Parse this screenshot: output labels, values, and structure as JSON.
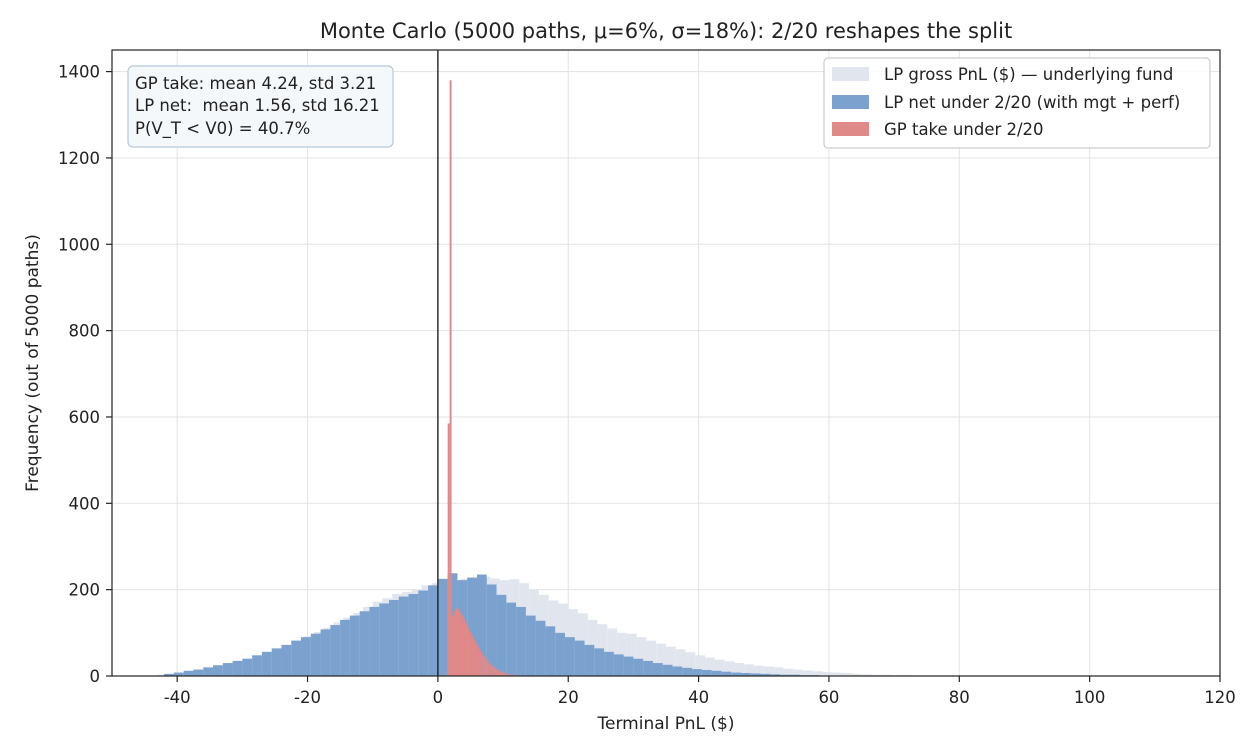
{
  "chart_data": {
    "type": "histogram",
    "title": "Monte Carlo (5000 paths, μ=6%, σ=18%): 2/20 reshapes the split",
    "xlabel": "Terminal PnL ($)",
    "ylabel": "Frequency (out of 5000 paths)",
    "xlim": [
      -50,
      120
    ],
    "ylim": [
      0,
      1450
    ],
    "xticks": [
      -40,
      -20,
      0,
      20,
      40,
      60,
      80,
      100,
      120
    ],
    "yticks": [
      0,
      200,
      400,
      600,
      800,
      1000,
      1200,
      1400
    ],
    "grid": true,
    "vline_x": 0,
    "legend_position": "top-right",
    "stats_box": {
      "lines": [
        "GP take: mean 4.24, std 3.21",
        "LP net:  mean 1.56, std 16.21",
        "P(V_T < V0) = 40.7%"
      ]
    },
    "series": [
      {
        "name": "LP gross PnL ($) — underlying fund",
        "color": "#e1e6ee",
        "bin_width": 1.5,
        "bins": [
          {
            "x": -43,
            "y": 3
          },
          {
            "x": -41.5,
            "y": 5
          },
          {
            "x": -40,
            "y": 8
          },
          {
            "x": -38.5,
            "y": 10
          },
          {
            "x": -37,
            "y": 14
          },
          {
            "x": -35.5,
            "y": 18
          },
          {
            "x": -34,
            "y": 22
          },
          {
            "x": -32.5,
            "y": 27
          },
          {
            "x": -31,
            "y": 33
          },
          {
            "x": -29.5,
            "y": 40
          },
          {
            "x": -28,
            "y": 47
          },
          {
            "x": -26.5,
            "y": 55
          },
          {
            "x": -25,
            "y": 63
          },
          {
            "x": -23.5,
            "y": 72
          },
          {
            "x": -22,
            "y": 82
          },
          {
            "x": -20.5,
            "y": 92
          },
          {
            "x": -19,
            "y": 102
          },
          {
            "x": -17.5,
            "y": 112
          },
          {
            "x": -16,
            "y": 124
          },
          {
            "x": -14.5,
            "y": 135
          },
          {
            "x": -13,
            "y": 146
          },
          {
            "x": -11.5,
            "y": 160
          },
          {
            "x": -10,
            "y": 172
          },
          {
            "x": -8.5,
            "y": 180
          },
          {
            "x": -7,
            "y": 190
          },
          {
            "x": -5.5,
            "y": 195
          },
          {
            "x": -4,
            "y": 200
          },
          {
            "x": -2.5,
            "y": 210
          },
          {
            "x": -1,
            "y": 215
          },
          {
            "x": 0.5,
            "y": 218
          },
          {
            "x": 2,
            "y": 222
          },
          {
            "x": 3.5,
            "y": 225
          },
          {
            "x": 5,
            "y": 228
          },
          {
            "x": 6.5,
            "y": 230
          },
          {
            "x": 8,
            "y": 226
          },
          {
            "x": 9.5,
            "y": 222
          },
          {
            "x": 11,
            "y": 224
          },
          {
            "x": 12.5,
            "y": 215
          },
          {
            "x": 14,
            "y": 200
          },
          {
            "x": 15.5,
            "y": 188
          },
          {
            "x": 17,
            "y": 175
          },
          {
            "x": 18.5,
            "y": 168
          },
          {
            "x": 20,
            "y": 155
          },
          {
            "x": 21.5,
            "y": 145
          },
          {
            "x": 23,
            "y": 130
          },
          {
            "x": 24.5,
            "y": 120
          },
          {
            "x": 26,
            "y": 110
          },
          {
            "x": 27.5,
            "y": 100
          },
          {
            "x": 29,
            "y": 98
          },
          {
            "x": 30.5,
            "y": 90
          },
          {
            "x": 32,
            "y": 82
          },
          {
            "x": 33.5,
            "y": 75
          },
          {
            "x": 35,
            "y": 68
          },
          {
            "x": 36.5,
            "y": 62
          },
          {
            "x": 38,
            "y": 55
          },
          {
            "x": 39.5,
            "y": 48
          },
          {
            "x": 41,
            "y": 43
          },
          {
            "x": 42.5,
            "y": 38
          },
          {
            "x": 44,
            "y": 34
          },
          {
            "x": 45.5,
            "y": 30
          },
          {
            "x": 47,
            "y": 27
          },
          {
            "x": 48.5,
            "y": 24
          },
          {
            "x": 50,
            "y": 22
          },
          {
            "x": 51.5,
            "y": 20
          },
          {
            "x": 53,
            "y": 17
          },
          {
            "x": 54.5,
            "y": 15
          },
          {
            "x": 56,
            "y": 13
          },
          {
            "x": 57.5,
            "y": 11
          },
          {
            "x": 59,
            "y": 9
          },
          {
            "x": 60.5,
            "y": 8
          },
          {
            "x": 62,
            "y": 7
          },
          {
            "x": 63.5,
            "y": 5
          },
          {
            "x": 65,
            "y": 4
          },
          {
            "x": 66.5,
            "y": 3
          },
          {
            "x": 68,
            "y": 3
          },
          {
            "x": 69.5,
            "y": 2
          },
          {
            "x": 71,
            "y": 2
          },
          {
            "x": 72.5,
            "y": 1
          },
          {
            "x": 74,
            "y": 1
          },
          {
            "x": 75.5,
            "y": 1
          }
        ]
      },
      {
        "name": "LP net under 2/20 (with mgt + perf)",
        "color": "#7ba2cf",
        "bin_width": 1.5,
        "bins": [
          {
            "x": -42,
            "y": 5
          },
          {
            "x": -40.5,
            "y": 8
          },
          {
            "x": -39,
            "y": 12
          },
          {
            "x": -37.5,
            "y": 15
          },
          {
            "x": -36,
            "y": 20
          },
          {
            "x": -34.5,
            "y": 25
          },
          {
            "x": -33,
            "y": 30
          },
          {
            "x": -31.5,
            "y": 35
          },
          {
            "x": -30,
            "y": 40
          },
          {
            "x": -28.5,
            "y": 48
          },
          {
            "x": -27,
            "y": 56
          },
          {
            "x": -25.5,
            "y": 64
          },
          {
            "x": -24,
            "y": 72
          },
          {
            "x": -22.5,
            "y": 82
          },
          {
            "x": -21,
            "y": 90
          },
          {
            "x": -19.5,
            "y": 98
          },
          {
            "x": -18,
            "y": 108
          },
          {
            "x": -16.5,
            "y": 118
          },
          {
            "x": -15,
            "y": 130
          },
          {
            "x": -13.5,
            "y": 140
          },
          {
            "x": -12,
            "y": 150
          },
          {
            "x": -10.5,
            "y": 160
          },
          {
            "x": -9,
            "y": 168
          },
          {
            "x": -7.5,
            "y": 176
          },
          {
            "x": -6,
            "y": 184
          },
          {
            "x": -4.5,
            "y": 190
          },
          {
            "x": -3,
            "y": 198
          },
          {
            "x": -1.5,
            "y": 210
          },
          {
            "x": 0,
            "y": 225
          },
          {
            "x": 1.5,
            "y": 238
          },
          {
            "x": 3,
            "y": 222
          },
          {
            "x": 4.5,
            "y": 228
          },
          {
            "x": 6,
            "y": 235
          },
          {
            "x": 7.5,
            "y": 212
          },
          {
            "x": 9,
            "y": 188
          },
          {
            "x": 10.5,
            "y": 170
          },
          {
            "x": 12,
            "y": 160
          },
          {
            "x": 13.5,
            "y": 140
          },
          {
            "x": 15,
            "y": 128
          },
          {
            "x": 16.5,
            "y": 115
          },
          {
            "x": 18,
            "y": 100
          },
          {
            "x": 19.5,
            "y": 90
          },
          {
            "x": 21,
            "y": 82
          },
          {
            "x": 22.5,
            "y": 72
          },
          {
            "x": 24,
            "y": 64
          },
          {
            "x": 25.5,
            "y": 56
          },
          {
            "x": 27,
            "y": 50
          },
          {
            "x": 28.5,
            "y": 45
          },
          {
            "x": 30,
            "y": 40
          },
          {
            "x": 31.5,
            "y": 35
          },
          {
            "x": 33,
            "y": 30
          },
          {
            "x": 34.5,
            "y": 26
          },
          {
            "x": 36,
            "y": 22
          },
          {
            "x": 37.5,
            "y": 19
          },
          {
            "x": 39,
            "y": 16
          },
          {
            "x": 40.5,
            "y": 14
          },
          {
            "x": 42,
            "y": 12
          },
          {
            "x": 43.5,
            "y": 10
          },
          {
            "x": 45,
            "y": 8
          },
          {
            "x": 46.5,
            "y": 7
          },
          {
            "x": 48,
            "y": 6
          },
          {
            "x": 49.5,
            "y": 5
          },
          {
            "x": 51,
            "y": 4
          },
          {
            "x": 52.5,
            "y": 3
          },
          {
            "x": 54,
            "y": 3
          },
          {
            "x": 55.5,
            "y": 2
          },
          {
            "x": 57,
            "y": 2
          },
          {
            "x": 58.5,
            "y": 1
          }
        ]
      },
      {
        "name": "GP take under 2/20",
        "color": "#e08989",
        "bin_width": 0.3,
        "bins": [
          {
            "x": 1.5,
            "y": 585
          },
          {
            "x": 1.8,
            "y": 1380
          },
          {
            "x": 2.1,
            "y": 140
          },
          {
            "x": 2.4,
            "y": 150
          },
          {
            "x": 2.7,
            "y": 158
          },
          {
            "x": 3.0,
            "y": 155
          },
          {
            "x": 3.3,
            "y": 148
          },
          {
            "x": 3.6,
            "y": 140
          },
          {
            "x": 3.9,
            "y": 132
          },
          {
            "x": 4.2,
            "y": 122
          },
          {
            "x": 4.5,
            "y": 112
          },
          {
            "x": 4.8,
            "y": 102
          },
          {
            "x": 5.1,
            "y": 94
          },
          {
            "x": 5.4,
            "y": 85
          },
          {
            "x": 5.7,
            "y": 76
          },
          {
            "x": 6.0,
            "y": 68
          },
          {
            "x": 6.3,
            "y": 60
          },
          {
            "x": 6.6,
            "y": 53
          },
          {
            "x": 6.9,
            "y": 46
          },
          {
            "x": 7.2,
            "y": 40
          },
          {
            "x": 7.5,
            "y": 34
          },
          {
            "x": 7.8,
            "y": 29
          },
          {
            "x": 8.1,
            "y": 25
          },
          {
            "x": 8.4,
            "y": 21
          },
          {
            "x": 8.7,
            "y": 18
          },
          {
            "x": 9.0,
            "y": 15
          },
          {
            "x": 9.3,
            "y": 12
          },
          {
            "x": 9.6,
            "y": 10
          },
          {
            "x": 9.9,
            "y": 8
          },
          {
            "x": 10.2,
            "y": 7
          },
          {
            "x": 10.5,
            "y": 5
          },
          {
            "x": 10.8,
            "y": 4
          },
          {
            "x": 11.1,
            "y": 3
          },
          {
            "x": 11.4,
            "y": 3
          },
          {
            "x": 11.7,
            "y": 2
          },
          {
            "x": 12.0,
            "y": 2
          },
          {
            "x": 12.3,
            "y": 1
          },
          {
            "x": 12.6,
            "y": 1
          },
          {
            "x": 12.9,
            "y": 1
          },
          {
            "x": 13.2,
            "y": 1
          }
        ]
      }
    ]
  }
}
